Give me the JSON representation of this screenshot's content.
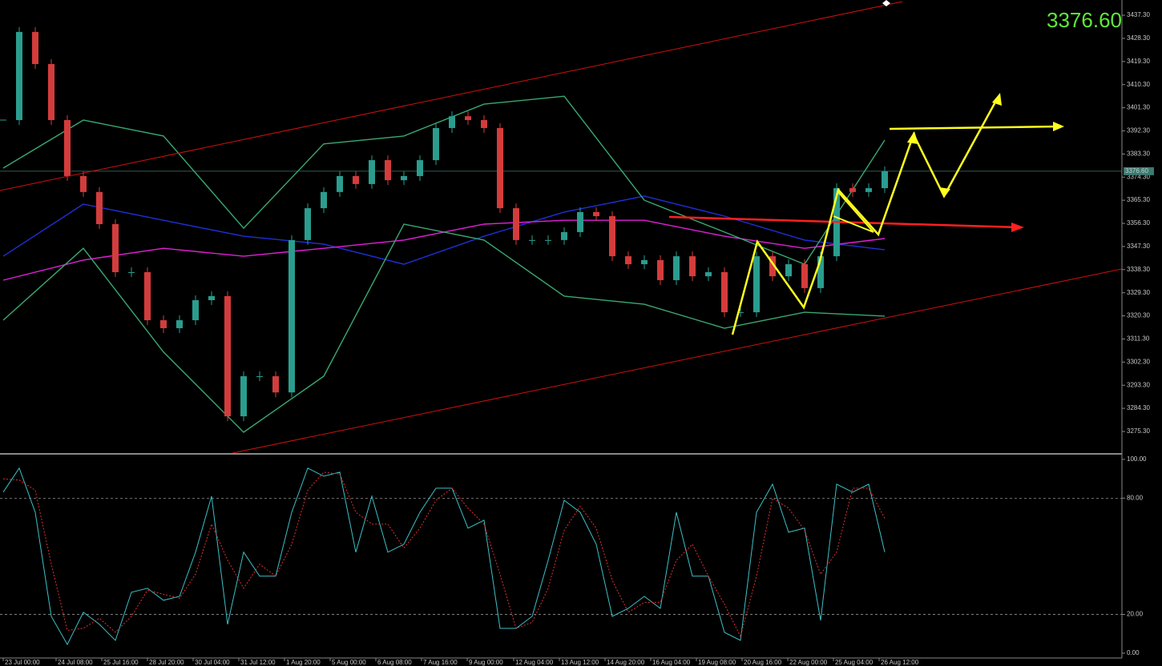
{
  "chart_data": [
    {
      "type": "candlestick",
      "current_price": {
        "value": 3376.6,
        "label": "3376.60"
      },
      "xlim": [
        -0.2,
        69.8
      ],
      "ylim": [
        3267.2,
        3442.3
      ],
      "yticks": [
        {
          "value": 3437.3,
          "label": "3437.30"
        },
        {
          "value": 3428.3,
          "label": "3428.30"
        },
        {
          "value": 3419.3,
          "label": "3419.30"
        },
        {
          "value": 3410.3,
          "label": "3410.30"
        },
        {
          "value": 3401.3,
          "label": "3401.30"
        },
        {
          "value": 3392.3,
          "label": "3392.30"
        },
        {
          "value": 3383.3,
          "label": "3383.30"
        },
        {
          "value": 3374.3,
          "label": "3374.30"
        },
        {
          "value": 3365.3,
          "label": "3365.30"
        },
        {
          "value": 3356.3,
          "label": "3356.30"
        },
        {
          "value": 3347.3,
          "label": "3347.30"
        },
        {
          "value": 3338.3,
          "label": "3338.30"
        },
        {
          "value": 3329.3,
          "label": "3329.30"
        },
        {
          "value": 3320.3,
          "label": "3320.30"
        },
        {
          "value": 3311.3,
          "label": "3311.30"
        },
        {
          "value": 3302.3,
          "label": "3302.30"
        },
        {
          "value": 3293.3,
          "label": "3293.30"
        },
        {
          "value": 3284.3,
          "label": "3284.30"
        },
        {
          "value": 3275.3,
          "label": "3275.30"
        }
      ],
      "up_color": "#2a9d8f",
      "down_color": "#d43c3c",
      "close": [
        3396.5,
        3430.8,
        3418.3,
        3396.5,
        3374.7,
        3368.5,
        3356.0,
        3337.3,
        3337.3,
        3318.6,
        3315.5,
        3318.6,
        3326.4,
        3328.0,
        3281.2,
        3296.8,
        3296.8,
        3290.5,
        3349.8,
        3362.2,
        3368.5,
        3374.7,
        3371.6,
        3380.9,
        3373.1,
        3374.7,
        3380.9,
        3393.4,
        3398.0,
        3396.5,
        3393.4,
        3362.2,
        3349.8,
        3349.8,
        3349.8,
        3352.9,
        3360.7,
        3359.1,
        3343.5,
        3340.4,
        3342.0,
        3334.2,
        3343.5,
        3335.7,
        3337.3,
        3321.7,
        3321.7,
        3343.5,
        3335.7,
        3340.4,
        3331.1,
        3343.5,
        3370.0,
        3368.5,
        3370.0,
        3376.6
      ],
      "series": [
        {
          "color": "#1f2fd6",
          "x": [
            0,
            5,
            10,
            15,
            20,
            25,
            30,
            35,
            40,
            45,
            50,
            55
          ],
          "values": [
            3343.5,
            3363.8,
            3357.5,
            3351.3,
            3348.2,
            3340.4,
            3351.3,
            3360.7,
            3366.9,
            3359.1,
            3349.8,
            3346.0
          ]
        },
        {
          "color": "#e020d8",
          "x": [
            0,
            5,
            10,
            15,
            20,
            25,
            30,
            35,
            40,
            45,
            50,
            55
          ],
          "values": [
            3334.2,
            3342.0,
            3346.6,
            3343.5,
            3346.6,
            3349.8,
            3356.0,
            3357.5,
            3357.5,
            3351.3,
            3346.6,
            3350.4
          ]
        },
        {
          "color": "#3aa872",
          "x": [
            0,
            5,
            10,
            15,
            20,
            25,
            30,
            35,
            40,
            45,
            50,
            55
          ],
          "values": [
            3377.8,
            3396.5,
            3390.3,
            3354.4,
            3387.2,
            3390.3,
            3402.7,
            3405.8,
            3365.3,
            3352.9,
            3340.4,
            3388.7
          ]
        },
        {
          "color": "#3aa872",
          "x": [
            0,
            5,
            10,
            15,
            20,
            25,
            30,
            35,
            40,
            45,
            50,
            55
          ],
          "values": [
            3318.6,
            3346.6,
            3306.2,
            3275.0,
            3296.8,
            3356.0,
            3349.8,
            3328.0,
            3324.8,
            3315.5,
            3321.7,
            3320.2
          ]
        }
      ]
    },
    {
      "type": "line",
      "xlim": [
        -0.2,
        69.8
      ],
      "ylim": [
        -2.5,
        101.6
      ],
      "yticks": [
        {
          "value": 100,
          "label": "100.00"
        },
        {
          "value": 80,
          "label": "80.00"
        },
        {
          "value": 20,
          "label": "20.00"
        },
        {
          "value": 0,
          "label": "0.00"
        }
      ],
      "levels": [
        80,
        20
      ],
      "xticks": [
        {
          "value": 0,
          "label": "23 Jul 00:00"
        },
        {
          "value": 3.3,
          "label": "24 Jul 08:00"
        },
        {
          "value": 6.15,
          "label": "25 Jul 16:00"
        },
        {
          "value": 9,
          "label": "28 Jul 20:00"
        },
        {
          "value": 11.85,
          "label": "30 Jul 04:00"
        },
        {
          "value": 14.7,
          "label": "31 Jul 12:00"
        },
        {
          "value": 17.55,
          "label": "1 Aug 20:00"
        },
        {
          "value": 20.4,
          "label": "5 Aug 00:00"
        },
        {
          "value": 23.25,
          "label": "6 Aug 08:00"
        },
        {
          "value": 26.1,
          "label": "7 Aug 16:00"
        },
        {
          "value": 28.95,
          "label": "9 Aug 00:00"
        },
        {
          "value": 31.85,
          "label": "12 Aug 04:00"
        },
        {
          "value": 34.7,
          "label": "13 Aug 12:00"
        },
        {
          "value": 37.55,
          "label": "14 Aug 20:00"
        },
        {
          "value": 40.4,
          "label": "16 Aug 04:00"
        },
        {
          "value": 43.25,
          "label": "19 Aug 08:00"
        },
        {
          "value": 46.1,
          "label": "20 Aug 16:00"
        },
        {
          "value": 48.95,
          "label": "22 Aug 00:00"
        },
        {
          "value": 51.8,
          "label": "25 Aug 04:00"
        },
        {
          "value": 54.65,
          "label": "26 Aug 12:00"
        }
      ],
      "series": [
        {
          "color": "#3cc0c8",
          "dash": false,
          "values": [
            83.1,
            95.5,
            72.7,
            19.0,
            4.5,
            21.1,
            14.9,
            6.6,
            31.4,
            33.5,
            27.3,
            29.3,
            52.1,
            81.0,
            14.9,
            52.1,
            39.7,
            39.7,
            72.7,
            95.5,
            91.3,
            93.4,
            52.1,
            81.0,
            52.1,
            56.2,
            72.7,
            85.1,
            85.1,
            64.5,
            68.6,
            12.8,
            12.8,
            19.0,
            47.9,
            78.9,
            72.7,
            56.2,
            19.0,
            23.1,
            29.3,
            23.1,
            72.7,
            39.7,
            39.7,
            10.7,
            6.6,
            72.7,
            87.2,
            62.4,
            64.5,
            16.9,
            87.2,
            83.1,
            87.2,
            52.1
          ]
        },
        {
          "color": "#e03030",
          "dash": true,
          "values": [
            90,
            89.3,
            84.1,
            45.9,
            11.8,
            12.8,
            18.0,
            10.8,
            19.0,
            32.5,
            30.4,
            28.3,
            40.7,
            66.6,
            48.0,
            33.5,
            45.9,
            39.7,
            56.2,
            84.1,
            93.4,
            92.4,
            72.7,
            66.6,
            66.6,
            54.2,
            64.5,
            78.9,
            85.1,
            74.8,
            66.6,
            40.7,
            12.8,
            15.9,
            33.5,
            63.4,
            75.8,
            64.5,
            37.6,
            21.1,
            26.2,
            26.2,
            47.9,
            56.2,
            39.7,
            25.2,
            8.7,
            39.7,
            80.0,
            74.8,
            63.4,
            40.7,
            52.1,
            85.1,
            85.1,
            69.6
          ]
        }
      ]
    }
  ]
}
